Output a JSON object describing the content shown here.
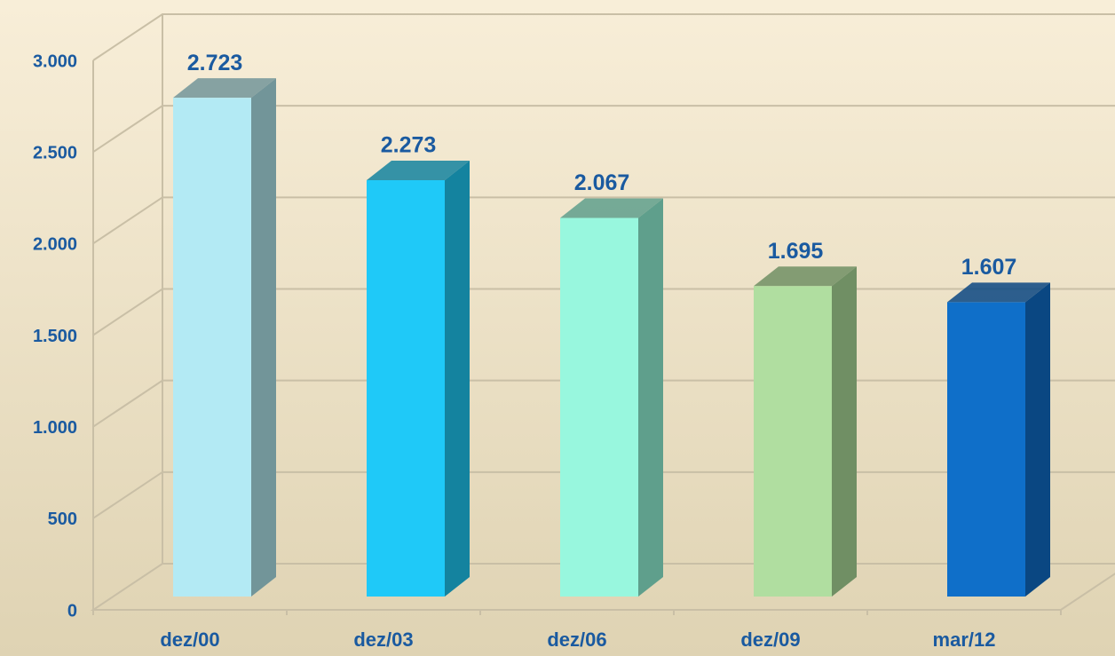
{
  "chart_data": {
    "type": "bar3d",
    "categories": [
      "dez/00",
      "dez/03",
      "dez/06",
      "dez/09",
      "mar/12"
    ],
    "values": [
      2723,
      2273,
      2067,
      1695,
      1607
    ],
    "value_labels": [
      "2.723",
      "2.273",
      "2.067",
      "1.695",
      "1.607"
    ],
    "colors": [
      "#b3eaf4",
      "#1fc9f8",
      "#98f7de",
      "#b0dea0",
      "#0f6fc9"
    ],
    "side_colors": [
      "#729599",
      "#14839f",
      "#5f9f8c",
      "#708f64",
      "#0a4782"
    ],
    "ylim": [
      0,
      3000
    ],
    "yticks": [
      {
        "value": 0,
        "label": "0"
      },
      {
        "value": 500,
        "label": "500"
      },
      {
        "value": 1000,
        "label": "1.000"
      },
      {
        "value": 1500,
        "label": "1.500"
      },
      {
        "value": 2000,
        "label": "2.000"
      },
      {
        "value": 2500,
        "label": "2.500"
      },
      {
        "value": 3000,
        "label": "3.000"
      }
    ],
    "grid": true
  }
}
